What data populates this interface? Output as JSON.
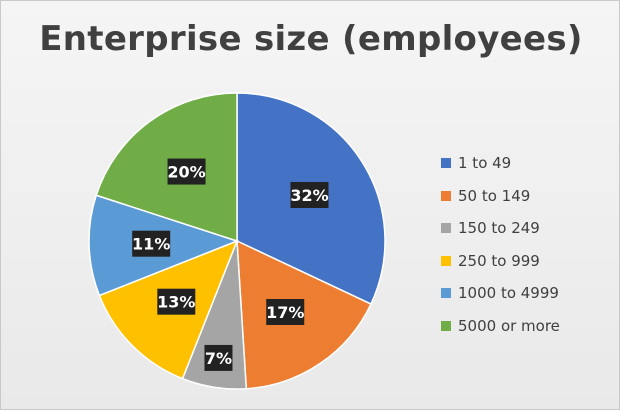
{
  "chart_data": {
    "type": "pie",
    "title": "Enterprise size (employees)",
    "categories": [
      "1 to 49",
      "50 to 149",
      "150 to 249",
      "250 to 999",
      "1000 to 4999",
      "5000 or more"
    ],
    "values": [
      32,
      17,
      7,
      13,
      11,
      20
    ],
    "labels": [
      "32%",
      "17%",
      "7%",
      "13%",
      "11%",
      "20%"
    ],
    "colors": [
      "#4472C4",
      "#ED7D31",
      "#A5A5A5",
      "#FFC000",
      "#5B9BD5",
      "#70AD47"
    ],
    "legend_position": "right",
    "start_angle": "top, clockwise"
  }
}
